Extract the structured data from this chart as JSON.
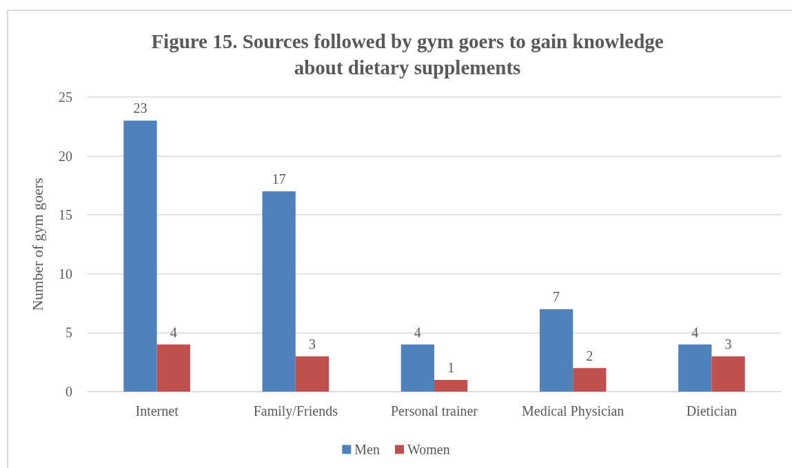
{
  "chart_data": {
    "type": "bar",
    "title": "Figure 15. Sources followed by gym goers to gain knowledge\nabout dietary supplements",
    "ylabel": "Number of gym goers",
    "categories": [
      "Internet",
      "Family/Friends",
      "Personal trainer",
      "Medical Physician",
      "Dietician"
    ],
    "series": [
      {
        "name": "Men",
        "color": "#4f81bd",
        "values": [
          23,
          17,
          4,
          7,
          4
        ]
      },
      {
        "name": "Women",
        "color": "#c0504d",
        "values": [
          4,
          3,
          1,
          2,
          3
        ]
      }
    ],
    "ylim": [
      0,
      25
    ],
    "yticks": [
      0,
      5,
      10,
      15,
      20,
      25
    ],
    "grid": "y",
    "legend": "bottom",
    "data_labels": true
  }
}
